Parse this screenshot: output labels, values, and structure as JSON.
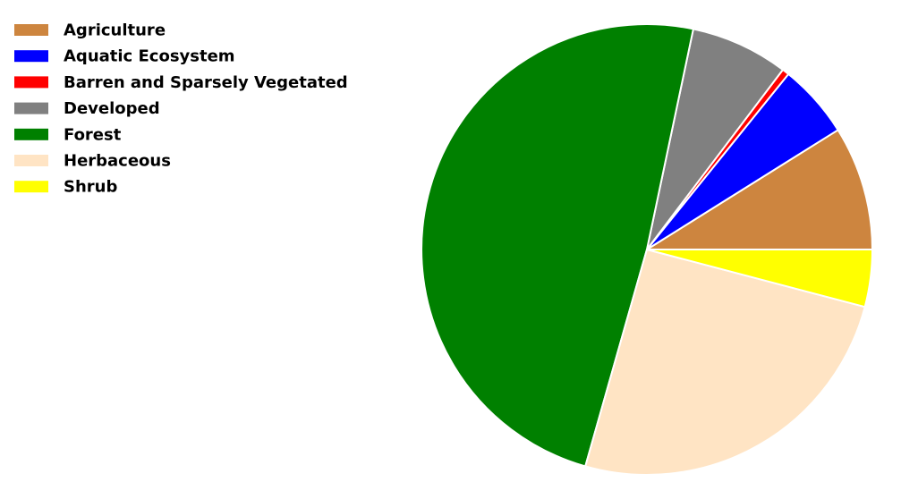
{
  "chart_data": {
    "type": "pie",
    "title": "",
    "start_angle_deg": 0,
    "direction": "counterclockwise",
    "legend_placement": "top-left",
    "slices": [
      {
        "label": "Agriculture",
        "value": 8.9,
        "color": "#CD853F"
      },
      {
        "label": "Aquatic Ecosystem",
        "value": 5.3,
        "color": "#0000FF"
      },
      {
        "label": "Barren and Sparsely Vegetated",
        "value": 0.5,
        "color": "#FF0000"
      },
      {
        "label": "Developed",
        "value": 7.0,
        "color": "#808080"
      },
      {
        "label": "Forest",
        "value": 48.9,
        "color": "#008000"
      },
      {
        "label": "Herbaceous",
        "value": 25.3,
        "color": "#FFE4C4"
      },
      {
        "label": "Shrub",
        "value": 4.1,
        "color": "#FFFF00"
      }
    ]
  }
}
